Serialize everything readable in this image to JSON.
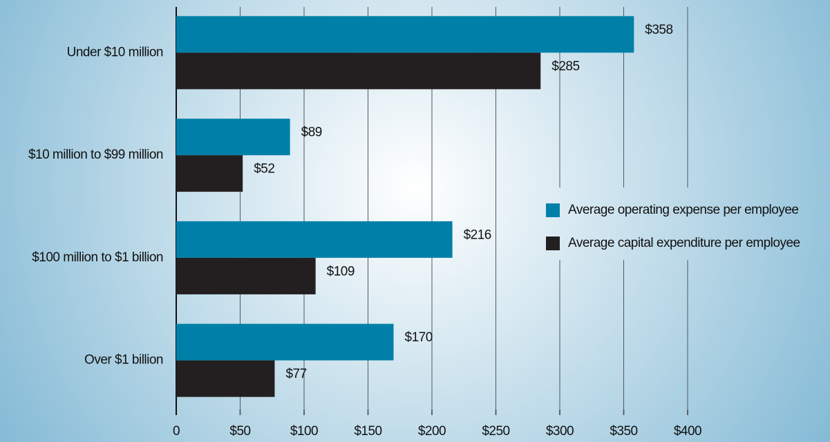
{
  "chart_data": {
    "type": "bar",
    "orientation": "horizontal",
    "categories": [
      "Under $10 million",
      "$10 million to $99 million",
      "$100 million to $1 billion",
      "Over $1 billion"
    ],
    "series": [
      {
        "name": "Average operating expense per employee",
        "color": "#0080a8",
        "values": [
          358,
          89,
          216,
          170
        ],
        "value_labels": [
          "$358",
          "$89",
          "$216",
          "$170"
        ]
      },
      {
        "name": "Average capital expenditure per employee",
        "color": "#231f20",
        "values": [
          285,
          52,
          109,
          77
        ],
        "value_labels": [
          "$285",
          "$52",
          "$109",
          "$77"
        ]
      }
    ],
    "xlim": [
      0,
      400
    ],
    "xticks": [
      0,
      {
        "value": 50,
        "label": "$50"
      },
      {
        "value": 100,
        "label": "$100"
      },
      {
        "value": 150,
        "label": "$150"
      },
      {
        "value": 200,
        "label": "$200"
      },
      {
        "value": 250,
        "label": "$250"
      },
      {
        "value": 300,
        "label": "$300"
      },
      {
        "value": 350,
        "label": "$350"
      },
      {
        "value": 400,
        "label": "$400"
      }
    ],
    "grid": true,
    "legend": "right"
  }
}
